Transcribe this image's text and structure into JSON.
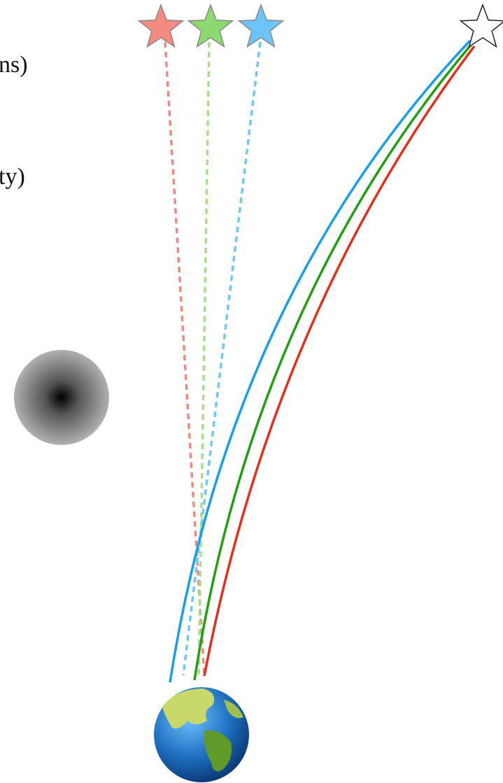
{
  "labels": [
    "ns)",
    "ty)"
  ]
}
